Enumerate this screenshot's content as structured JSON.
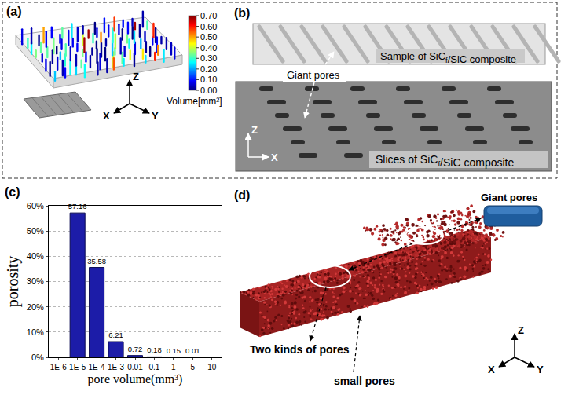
{
  "panel_a": {
    "label": "(a)",
    "axes": {
      "x": "X",
      "y": "Y",
      "z": "Z"
    },
    "colorbar": {
      "title": "Volume[mm²]",
      "range": [
        0,
        0.7
      ],
      "ticks": [
        {
          "value": 0,
          "label": "0.00"
        },
        {
          "value": 0.1,
          "label": "0.10"
        },
        {
          "value": 0.2,
          "label": "0.20"
        },
        {
          "value": 0.3,
          "label": "0.30"
        },
        {
          "value": 0.4,
          "label": "0.40"
        },
        {
          "value": 0.5,
          "label": "0.50"
        },
        {
          "value": 0.6,
          "label": "0.60"
        },
        {
          "value": 0.7,
          "label": "0.70"
        }
      ]
    }
  },
  "panel_b": {
    "label": "(b)",
    "axes": {
      "x": "X",
      "z": "Z"
    },
    "sample": "Sample of SiCf/SiC composite",
    "slices": "Slices of SiCf/SiC composite",
    "giant": "Giant pores"
  },
  "panel_c": {
    "label": "(c)"
  },
  "chart_data": {
    "type": "bar",
    "categories": [
      "1E-6",
      "1E-5",
      "1E-4",
      "1E-3",
      "0.01",
      "0.1",
      "1",
      "5",
      "10"
    ],
    "values": [
      null,
      57.16,
      35.58,
      6.21,
      0.72,
      0.18,
      0.15,
      0.01,
      null
    ],
    "color": "#1c1ca8",
    "x_label": "pore volume(mm³)",
    "y_label": "porosity",
    "ylim": [
      0,
      60
    ],
    "yticks": [
      {
        "value": 0,
        "label": "0%"
      },
      {
        "value": 10,
        "label": "10%"
      },
      {
        "value": 20,
        "label": "20%"
      },
      {
        "value": 30,
        "label": "30%"
      },
      {
        "value": 40,
        "label": "40%"
      },
      {
        "value": 50,
        "label": "50%"
      },
      {
        "value": 60,
        "label": "60%"
      }
    ],
    "grid": true,
    "data_labels": true
  },
  "panel_d": {
    "label": "(d)",
    "axes": {
      "x": "X",
      "y": "Y",
      "z": "Z"
    },
    "giant": "Giant pores",
    "two": "Two kinds of pores",
    "small": "small pores"
  }
}
